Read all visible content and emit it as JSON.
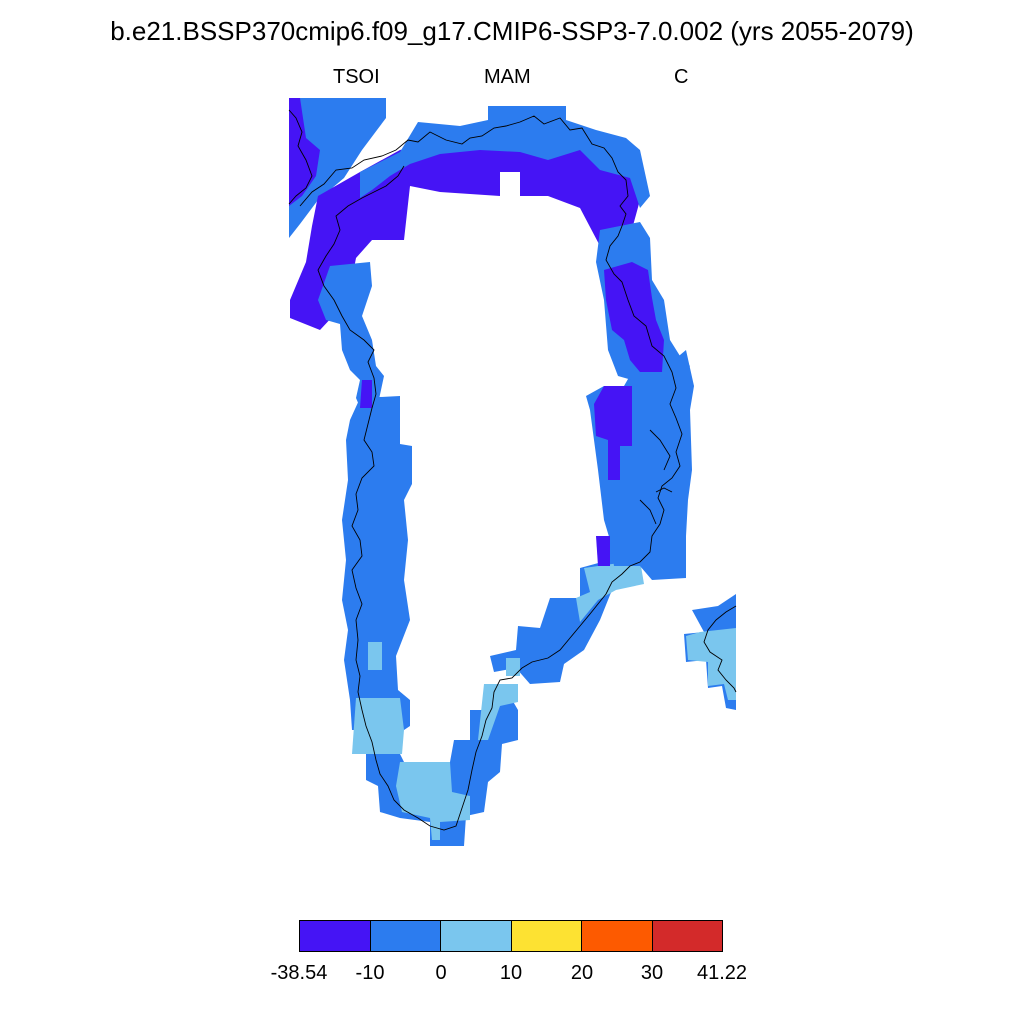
{
  "title": "b.e21.BSSP370cmip6.f09_g17.CMIP6-SSP3-7.0.002 (yrs 2055-2079)",
  "subtitle": {
    "left": "TSOI",
    "center": "MAM",
    "right": "C"
  },
  "colors": {
    "bin1": "#4514f5",
    "bin2": "#2c7cef",
    "bin3": "#7ac6ee",
    "bin4": "#fde232",
    "bin5": "#fd5a00",
    "bin6": "#d32a2a",
    "coastline": "#000000"
  },
  "colorbar": {
    "bins": [
      {
        "color": "#4514f5"
      },
      {
        "color": "#2c7cef"
      },
      {
        "color": "#7ac6ee"
      },
      {
        "color": "#fde232"
      },
      {
        "color": "#fd5a00"
      },
      {
        "color": "#d32a2a"
      }
    ],
    "labels": [
      "-38.54",
      "-10",
      "0",
      "10",
      "20",
      "30",
      "41.22"
    ]
  },
  "map": {
    "region": "Greenland",
    "variable": "TSOI",
    "season": "MAM",
    "units": "C",
    "ice_sheet_masked": true,
    "value_pattern": {
      "north_coast": "bin1",
      "northwest_coast": "bin1",
      "northeast_coast": "bin1",
      "west_coast": "bin2",
      "east_coast": "bin2",
      "southeast_coast": "bin3",
      "south_tip": "bin3",
      "southwest_coast": "bin3",
      "iceland_edge": "bin3"
    }
  }
}
